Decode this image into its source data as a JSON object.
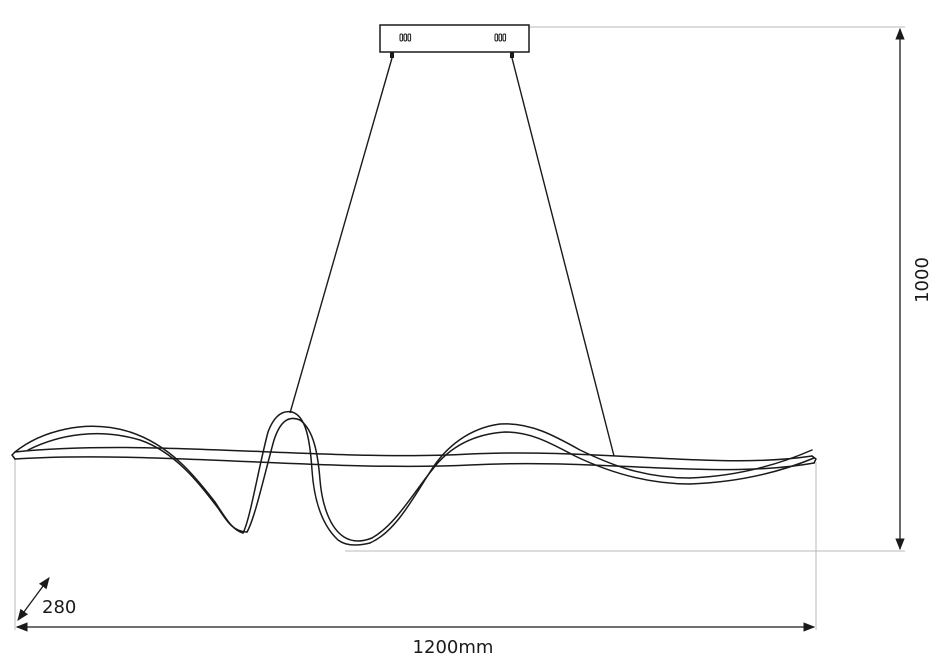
{
  "dimensions": {
    "height": "1000",
    "width": "1200mm",
    "depth": "280"
  },
  "colors": {
    "line": "#1a1a1a",
    "extension_line": "#b8b8b8",
    "background": "#ffffff"
  }
}
